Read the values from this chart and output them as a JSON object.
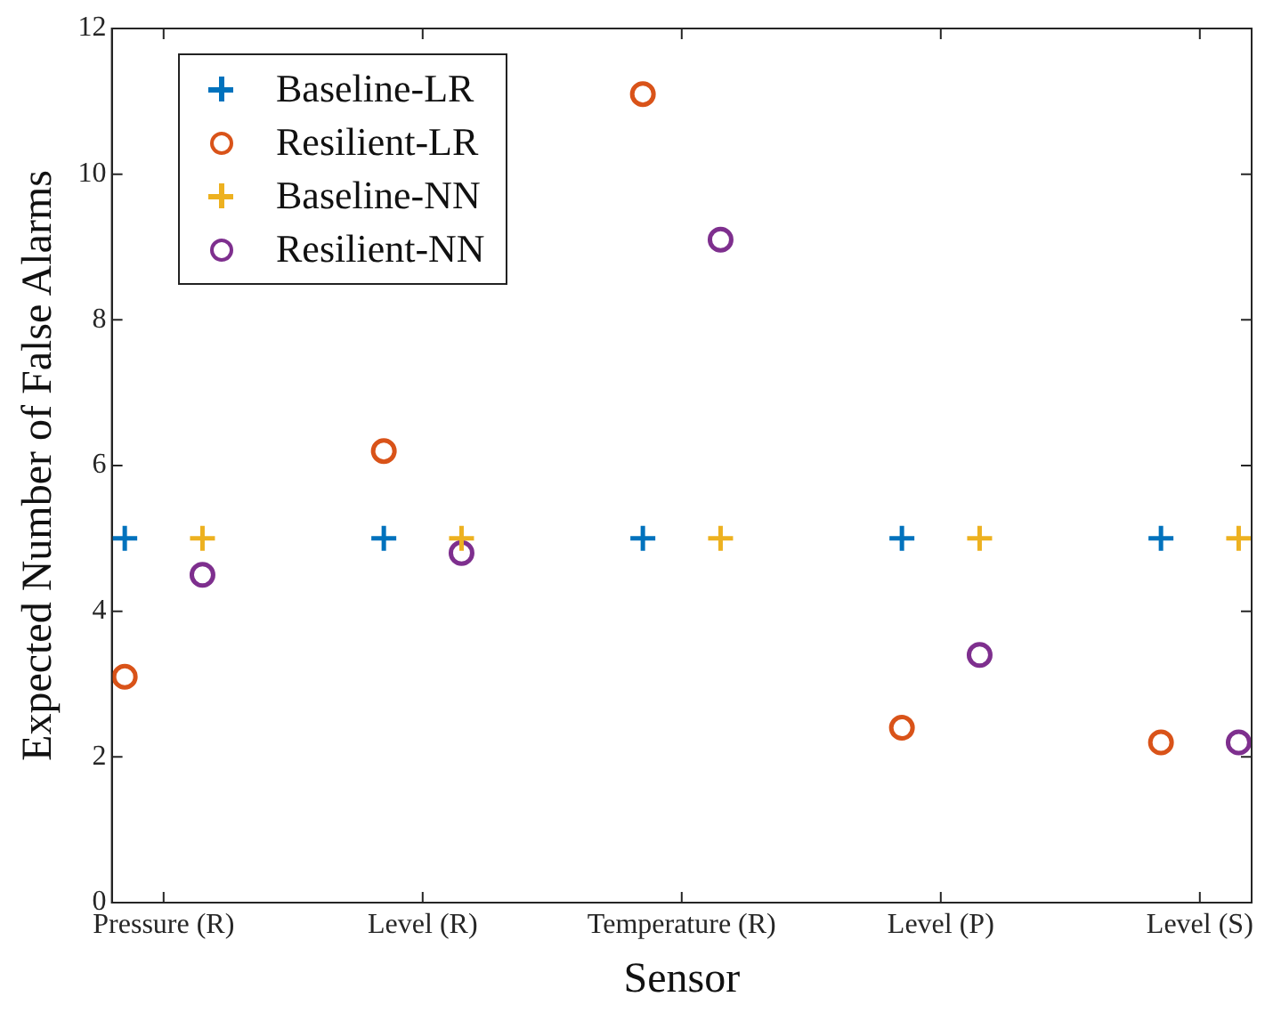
{
  "chart_data": {
    "type": "scatter",
    "xlabel": "Sensor",
    "ylabel": "Expected Number of False Alarms",
    "categories": [
      "Pressure (R)",
      "Level (R)",
      "Temperature (R)",
      "Level (P)",
      "Level (S)"
    ],
    "ylim": [
      0,
      12
    ],
    "yticks": [
      0,
      2,
      4,
      6,
      8,
      10,
      12
    ],
    "grid": false,
    "legend": "top left",
    "series": [
      {
        "name": "Baseline-LR",
        "color": "#0072bd",
        "marker": "cross",
        "values": [
          5,
          5,
          5,
          5,
          5
        ]
      },
      {
        "name": "Resilient-LR",
        "color": "#d95319",
        "marker": "circle",
        "values": [
          3.1,
          6.2,
          11.1,
          2.4,
          2.2
        ]
      },
      {
        "name": "Baseline-NN",
        "color": "#edb120",
        "marker": "cross",
        "values": [
          5,
          5,
          5,
          5,
          5
        ]
      },
      {
        "name": "Resilient-NN",
        "color": "#7e2f8e",
        "marker": "circle",
        "values": [
          4.5,
          4.8,
          9.1,
          3.4,
          2.2
        ]
      }
    ]
  }
}
